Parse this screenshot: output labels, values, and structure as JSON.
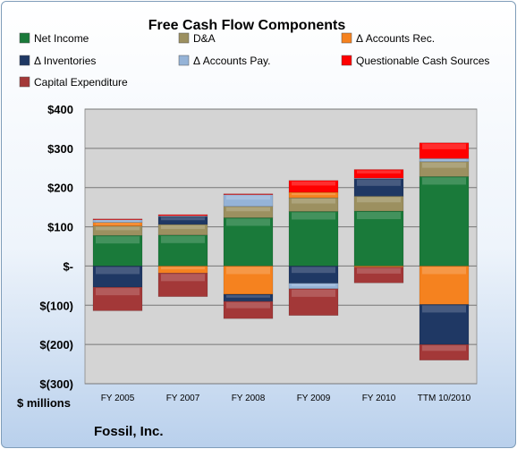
{
  "chart_data": {
    "type": "bar",
    "stacked": true,
    "title": "Free Cash Flow Components",
    "ylabel": "$ millions",
    "company": "Fossil, Inc.",
    "ylim": [
      -300,
      400
    ],
    "yticks": [
      400,
      300,
      200,
      100,
      0,
      -100,
      -200,
      -300
    ],
    "ytick_labels": [
      "$400",
      "$300",
      "$200",
      "$100",
      "$-",
      "$(100)",
      "$(200)",
      "$(300)"
    ],
    "grid": true,
    "legend_position": "top",
    "categories": [
      "FY 2005",
      "FY 2007",
      "FY 2008",
      "FY 2009",
      "FY 2010",
      "TTM 10/2010"
    ],
    "series": [
      {
        "name": "Net Income",
        "color": "#1a7a3a",
        "values": [
          78,
          79,
          123,
          139,
          140,
          228
        ]
      },
      {
        "name": "D&A",
        "color": "#9c9060",
        "values": [
          24,
          27,
          29,
          35,
          38,
          38
        ]
      },
      {
        "name": "Δ Accounts Rec.",
        "color": "#f5821f",
        "values": [
          9,
          -18,
          -72,
          14,
          -3,
          -98
        ]
      },
      {
        "name": "Δ Inventories",
        "color": "#1f3864",
        "values": [
          -54,
          20,
          -18,
          -44,
          44,
          -102
        ]
      },
      {
        "name": "Δ Accounts Pay.",
        "color": "#95b3d7",
        "values": [
          7,
          2,
          30,
          -14,
          2,
          8
        ]
      },
      {
        "name": "Questionable Cash Sources",
        "color": "#ff0000",
        "values": [
          2,
          3,
          2,
          30,
          22,
          40
        ]
      },
      {
        "name": "Capital Expenditure",
        "color": "#a33838",
        "values": [
          -60,
          -60,
          -44,
          -68,
          -40,
          -40
        ]
      }
    ]
  }
}
